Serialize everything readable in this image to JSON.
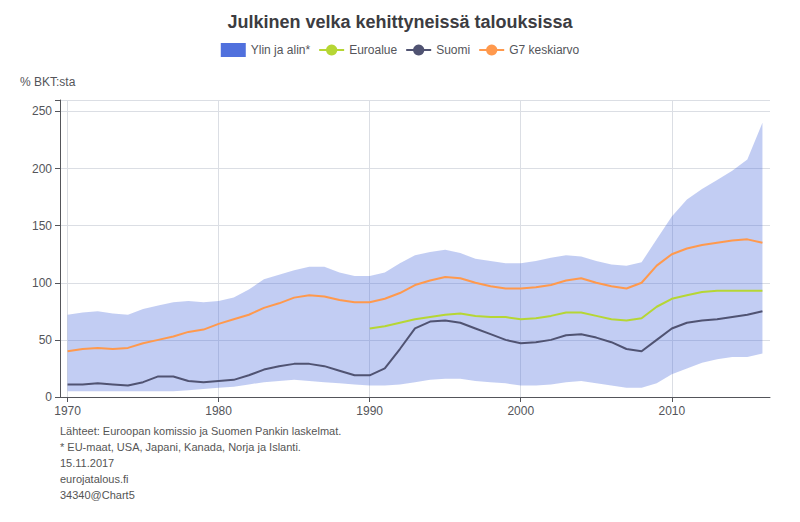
{
  "chart_data": {
    "type": "line",
    "title": "Julkinen velka kehittyneissä talouksissa",
    "ylabel": "% BKT:sta",
    "x": [
      1970,
      1971,
      1972,
      1973,
      1974,
      1975,
      1976,
      1977,
      1978,
      1979,
      1980,
      1981,
      1982,
      1983,
      1984,
      1985,
      1986,
      1987,
      1988,
      1989,
      1990,
      1991,
      1992,
      1993,
      1994,
      1995,
      1996,
      1997,
      1998,
      1999,
      2000,
      2001,
      2002,
      2003,
      2004,
      2005,
      2006,
      2007,
      2008,
      2009,
      2010,
      2011,
      2012,
      2013,
      2014,
      2015,
      2016
    ],
    "xlim": [
      1969.5,
      2016.5
    ],
    "xticks": [
      1970,
      1980,
      1990,
      2000,
      2010
    ],
    "ylim": [
      0,
      260
    ],
    "yticks": [
      0,
      50,
      100,
      150,
      200,
      250
    ],
    "grid": true,
    "legend": "top",
    "series": [
      {
        "name": "Ylin ja alin*",
        "type": "band",
        "upper": [
          72,
          74,
          75,
          73,
          72,
          77,
          80,
          83,
          84,
          83,
          84,
          87,
          94,
          103,
          107,
          111,
          114,
          114,
          109,
          106,
          106,
          109,
          117,
          124,
          127,
          129,
          126,
          121,
          119,
          117,
          117,
          119,
          122,
          124,
          123,
          119,
          116,
          115,
          118,
          138,
          158,
          173,
          182,
          190,
          198,
          208,
          240
        ],
        "lower": [
          5,
          5,
          5,
          5,
          5,
          5,
          5,
          5,
          6,
          7,
          8,
          9,
          11,
          13,
          14,
          15,
          14,
          13,
          12,
          11,
          10,
          10,
          11,
          13,
          15,
          16,
          16,
          14,
          13,
          12,
          10,
          10,
          11,
          13,
          14,
          12,
          10,
          8,
          8,
          12,
          20,
          25,
          30,
          33,
          35,
          35,
          38
        ]
      },
      {
        "name": "Euroalue",
        "type": "line",
        "values": [
          null,
          null,
          null,
          null,
          null,
          null,
          null,
          null,
          null,
          null,
          null,
          null,
          null,
          null,
          null,
          null,
          null,
          null,
          null,
          null,
          60,
          62,
          65,
          68,
          70,
          72,
          73,
          71,
          70,
          70,
          68,
          69,
          71,
          74,
          74,
          71,
          68,
          67,
          69,
          79,
          86,
          89,
          92,
          93,
          93,
          93,
          93
        ]
      },
      {
        "name": "Suomi",
        "type": "line",
        "values": [
          11,
          11,
          12,
          11,
          10,
          13,
          18,
          18,
          14,
          13,
          14,
          15,
          19,
          24,
          27,
          29,
          29,
          27,
          23,
          19,
          19,
          25,
          42,
          60,
          66,
          67,
          65,
          60,
          55,
          50,
          47,
          48,
          50,
          54,
          55,
          52,
          48,
          42,
          40,
          50,
          60,
          65,
          67,
          68,
          70,
          72,
          75
        ]
      },
      {
        "name": "G7 keskiarvo",
        "type": "line",
        "values": [
          40,
          42,
          43,
          42,
          43,
          47,
          50,
          53,
          57,
          59,
          64,
          68,
          72,
          78,
          82,
          87,
          89,
          88,
          85,
          83,
          83,
          86,
          91,
          98,
          102,
          105,
          104,
          100,
          97,
          95,
          95,
          96,
          98,
          102,
          104,
          100,
          97,
          95,
          100,
          115,
          125,
          130,
          133,
          135,
          137,
          138,
          135
        ]
      }
    ],
    "annotations": [
      "Lähteet: Euroopan komissio ja Suomen Pankin laskelmat.",
      "* EU-maat, USA, Japani, Kanada, Norja ja Islanti.",
      "15.11.2017",
      "eurojatalous.fi",
      "34340@Chart5"
    ]
  }
}
